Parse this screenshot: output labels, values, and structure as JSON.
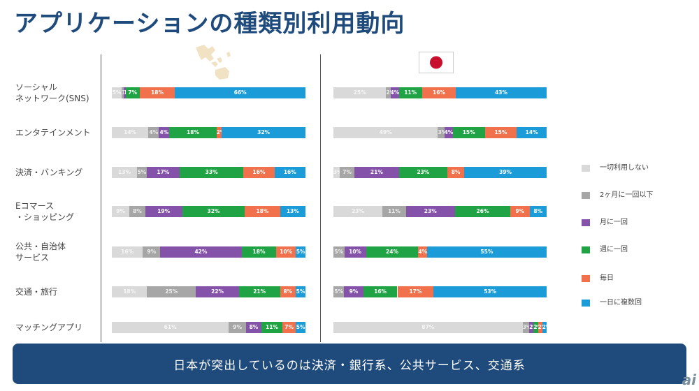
{
  "title": "アプリケーションの種類別利用動向",
  "banner_text": "日本が突出しているのは決済・銀行系、公共サービス、交通系",
  "watermark": "ai",
  "chart_data": {
    "type": "stacked_bar_horizontal",
    "title": "アプリケーションの種類別利用動向",
    "categories": [
      [
        "ソーシャル",
        "ネットワーク(SNS)"
      ],
      [
        "エンタテインメント"
      ],
      [
        "決済・バンキング"
      ],
      [
        "Eコマース",
        "・ショッピング"
      ],
      [
        "公共・自治体",
        "サービス"
      ],
      [
        "交通・旅行"
      ],
      [
        "マッチングアプリ"
      ]
    ],
    "legend": [
      "一切利用しない",
      "2ヶ月に一回以下",
      "月に一回",
      "週に一回",
      "毎日",
      "一日に複数回"
    ],
    "colors": [
      "#d9d9d9",
      "#a6a6a6",
      "#8452a8",
      "#1fa344",
      "#f0714b",
      "#1b9bd8"
    ],
    "series_unit": "%",
    "panels": [
      {
        "name": "APAC",
        "values": [
          [
            5,
            1,
            1,
            7,
            18,
            66
          ],
          [
            14,
            4,
            4,
            18,
            2,
            32
          ],
          [
            13,
            5,
            17,
            33,
            16,
            16
          ],
          [
            9,
            8,
            19,
            32,
            18,
            13
          ],
          [
            16,
            9,
            42,
            18,
            10,
            5
          ],
          [
            18,
            25,
            22,
            21,
            8,
            5
          ],
          [
            61,
            9,
            8,
            11,
            7,
            5
          ]
        ],
        "labels": [
          [
            "5%",
            "1%",
            "1%",
            "7%",
            "18%",
            "66%"
          ],
          [
            "14%",
            "4%",
            "4%",
            "18%",
            "2%",
            "32%"
          ],
          [
            "13%",
            "5%",
            "17%",
            "33%",
            "16%",
            "16%"
          ],
          [
            "9%",
            "8%",
            "19%",
            "32%",
            "18%",
            "13%"
          ],
          [
            "16%",
            "9%",
            "42%",
            "18%",
            "10%",
            "5%"
          ],
          [
            "18%",
            "25%",
            "22%",
            "21%",
            "8%",
            "5%"
          ],
          [
            "61%",
            "9%",
            "8%",
            "11%",
            "7%",
            "5%"
          ]
        ]
      },
      {
        "name": "Japan",
        "values": [
          [
            25,
            2,
            4,
            11,
            16,
            43
          ],
          [
            49,
            3,
            4,
            15,
            15,
            14
          ],
          [
            3,
            7,
            21,
            23,
            8,
            39
          ],
          [
            23,
            11,
            23,
            26,
            9,
            8
          ],
          [
            5,
            10,
            24,
            4,
            55
          ],
          [
            5,
            9,
            16,
            17,
            53
          ],
          [
            87,
            3,
            2,
            2,
            2,
            2
          ]
        ],
        "labels": [
          [
            "25%",
            "2%",
            "4%",
            "11%",
            "16%",
            "43%"
          ],
          [
            "49%",
            "3%",
            "4%",
            "15%",
            "15%",
            "14%"
          ],
          [
            "3%",
            "7%",
            "21%",
            "23%",
            "8%",
            "39%"
          ],
          [
            "23%",
            "11%",
            "23%",
            "26%",
            "9%",
            "8%"
          ],
          [
            "5%",
            "10%",
            "24%",
            "4%",
            "55%"
          ],
          [
            "5%",
            "9%",
            "16%",
            "17%",
            "53%"
          ],
          [
            "87%",
            "3%",
            "2%",
            "2%",
            "2%",
            "2%"
          ]
        ],
        "color_index": [
          [
            0,
            1,
            2,
            3,
            4,
            5
          ],
          [
            0,
            1,
            2,
            3,
            4,
            5
          ],
          [
            0,
            1,
            2,
            3,
            4,
            5
          ],
          [
            0,
            1,
            2,
            3,
            4,
            5
          ],
          [
            1,
            2,
            3,
            4,
            5
          ],
          [
            1,
            2,
            3,
            4,
            5
          ],
          [
            0,
            1,
            2,
            3,
            4,
            5
          ]
        ]
      }
    ]
  }
}
